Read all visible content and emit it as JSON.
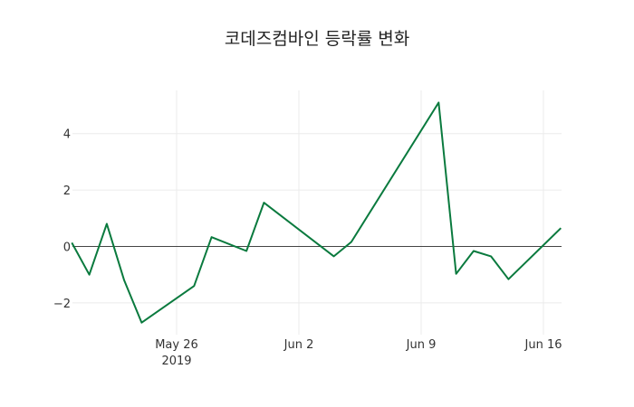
{
  "chart_data": {
    "type": "line",
    "title": "코데즈컴바인 등락률 변화",
    "xlabel": "",
    "ylabel": "",
    "x": [
      "2019-05-20",
      "2019-05-21",
      "2019-05-22",
      "2019-05-23",
      "2019-05-24",
      "2019-05-27",
      "2019-05-28",
      "2019-05-30",
      "2019-05-31",
      "2019-06-04",
      "2019-06-05",
      "2019-06-10",
      "2019-06-11",
      "2019-06-12",
      "2019-06-13",
      "2019-06-14",
      "2019-06-17"
    ],
    "series": [
      {
        "name": "등락률",
        "color": "#0a7a3e",
        "values": [
          0.13,
          -1.0,
          0.8,
          -1.2,
          -2.7,
          -1.4,
          0.33,
          -0.16,
          1.55,
          -0.35,
          0.16,
          5.1,
          -0.97,
          -0.16,
          -0.35,
          -1.16,
          0.65
        ]
      }
    ],
    "ylim": [
      -3.0,
      5.5
    ],
    "yticks": [
      -2,
      0,
      2,
      4
    ],
    "ytick_labels": [
      "−2",
      "0",
      "2",
      "4"
    ],
    "xticks": [
      {
        "date": "2019-05-26",
        "label": "May 26",
        "sublabel": "2019"
      },
      {
        "date": "2019-06-02",
        "label": "Jun 2",
        "sublabel": ""
      },
      {
        "date": "2019-06-09",
        "label": "Jun 9",
        "sublabel": ""
      },
      {
        "date": "2019-06-16",
        "label": "Jun 16",
        "sublabel": ""
      }
    ],
    "grid": true,
    "zeroline": true,
    "legend": "none"
  }
}
